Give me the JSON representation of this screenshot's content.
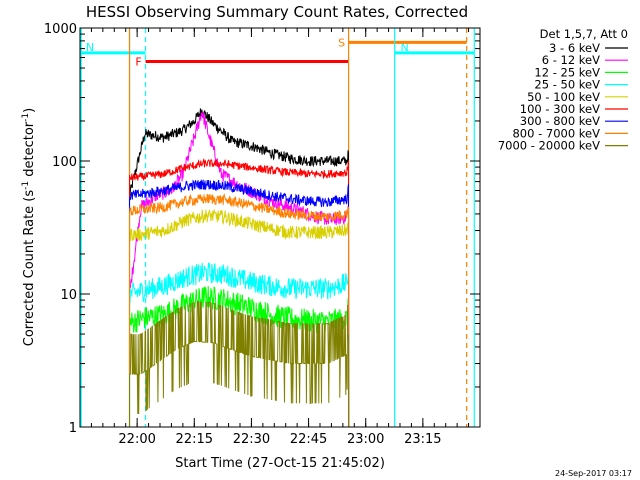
{
  "chart_data": {
    "type": "line",
    "title": "HESSI Observing Summary Count Rates, Corrected",
    "xlabel": "Start Time (27-Oct-15 21:45:02)",
    "ylabel_main": "Corrected Count Rate (s",
    "ylabel_sup1": "-1",
    "ylabel_mid": " detector",
    "ylabel_sup2": "-1",
    "ylabel_end": ")",
    "yscale": "log",
    "ylim": [
      1,
      1000
    ],
    "xlim_minutes": [
      0,
      105
    ],
    "x_start": "21:45:02",
    "xticks": [
      {
        "minute": 15,
        "label": "22:00"
      },
      {
        "minute": 30,
        "label": "22:15"
      },
      {
        "minute": 45,
        "label": "22:30"
      },
      {
        "minute": 60,
        "label": "22:45"
      },
      {
        "minute": 75,
        "label": "23:00"
      },
      {
        "minute": 90,
        "label": "23:15"
      }
    ],
    "yticks": [
      {
        "value": 1,
        "label": "1"
      },
      {
        "value": 10,
        "label": "10"
      },
      {
        "value": 100,
        "label": "100"
      },
      {
        "value": 1000,
        "label": "1000"
      }
    ],
    "legend_position": "right",
    "legend_header": "Det 1,5,7, Att 0",
    "data_start_minute": 13.0,
    "data_end_minute": 70.5,
    "series": [
      {
        "name": "3 - 6 keV",
        "color": "#000000",
        "noise": 0.04,
        "points": [
          [
            13,
            55
          ],
          [
            17,
            160
          ],
          [
            22,
            150
          ],
          [
            27,
            170
          ],
          [
            30,
            200
          ],
          [
            32,
            240
          ],
          [
            35,
            190
          ],
          [
            40,
            140
          ],
          [
            45,
            130
          ],
          [
            50,
            115
          ],
          [
            55,
            105
          ],
          [
            60,
            100
          ],
          [
            65,
            100
          ],
          [
            70,
            100
          ],
          [
            70.5,
            115
          ]
        ]
      },
      {
        "name": "6 - 12 keV",
        "color": "#ff00ff",
        "noise": 0.05,
        "points": [
          [
            13,
            10
          ],
          [
            16,
            45
          ],
          [
            20,
            55
          ],
          [
            24,
            60
          ],
          [
            27,
            80
          ],
          [
            30,
            150
          ],
          [
            32,
            235
          ],
          [
            34,
            150
          ],
          [
            37,
            80
          ],
          [
            42,
            65
          ],
          [
            50,
            50
          ],
          [
            58,
            42
          ],
          [
            62,
            38
          ],
          [
            66,
            36
          ],
          [
            70,
            38
          ],
          [
            70.5,
            45
          ]
        ]
      },
      {
        "name": "12 - 25 keV",
        "color": "#00ff00",
        "noise": 0.09,
        "points": [
          [
            13,
            6
          ],
          [
            16,
            6.5
          ],
          [
            22,
            7
          ],
          [
            28,
            8.5
          ],
          [
            33,
            9.5
          ],
          [
            38,
            9
          ],
          [
            44,
            8
          ],
          [
            50,
            7
          ],
          [
            55,
            6.5
          ],
          [
            60,
            6.3
          ],
          [
            65,
            6.2
          ],
          [
            70,
            6.5
          ],
          [
            70.5,
            8
          ]
        ]
      },
      {
        "name": "25 - 50 keV",
        "color": "#00ffff",
        "noise": 0.08,
        "points": [
          [
            13,
            10
          ],
          [
            16,
            10.5
          ],
          [
            22,
            11.5
          ],
          [
            28,
            13.5
          ],
          [
            33,
            14.5
          ],
          [
            38,
            14
          ],
          [
            44,
            12.5
          ],
          [
            50,
            11.5
          ],
          [
            55,
            11
          ],
          [
            60,
            11
          ],
          [
            65,
            11
          ],
          [
            70,
            12
          ],
          [
            70.5,
            15
          ]
        ]
      },
      {
        "name": "50 - 100 keV",
        "color": "#d8d000",
        "noise": 0.05,
        "points": [
          [
            13,
            28
          ],
          [
            16,
            28
          ],
          [
            22,
            30
          ],
          [
            28,
            36
          ],
          [
            33,
            39
          ],
          [
            38,
            38
          ],
          [
            44,
            34
          ],
          [
            50,
            31
          ],
          [
            55,
            29
          ],
          [
            60,
            29
          ],
          [
            65,
            29
          ],
          [
            70,
            30
          ],
          [
            70.5,
            34
          ]
        ]
      },
      {
        "name": "100 - 300 keV",
        "color": "#ff0000",
        "noise": 0.03,
        "points": [
          [
            13,
            75
          ],
          [
            16,
            76
          ],
          [
            22,
            80
          ],
          [
            28,
            90
          ],
          [
            33,
            96
          ],
          [
            38,
            95
          ],
          [
            44,
            90
          ],
          [
            50,
            85
          ],
          [
            55,
            82
          ],
          [
            60,
            80
          ],
          [
            65,
            80
          ],
          [
            70,
            82
          ],
          [
            70.5,
            95
          ]
        ]
      },
      {
        "name": "300 - 800 keV",
        "color": "#0000ff",
        "noise": 0.04,
        "points": [
          [
            13,
            55
          ],
          [
            16,
            56
          ],
          [
            22,
            60
          ],
          [
            28,
            65
          ],
          [
            33,
            67
          ],
          [
            38,
            65
          ],
          [
            44,
            60
          ],
          [
            50,
            55
          ],
          [
            55,
            52
          ],
          [
            60,
            50
          ],
          [
            65,
            49
          ],
          [
            70,
            52
          ],
          [
            70.5,
            62
          ]
        ]
      },
      {
        "name": "800 - 7000 keV",
        "color": "#ff8000",
        "noise": 0.04,
        "points": [
          [
            13,
            42
          ],
          [
            16,
            43
          ],
          [
            22,
            45
          ],
          [
            28,
            50
          ],
          [
            33,
            52
          ],
          [
            38,
            51
          ],
          [
            44,
            47
          ],
          [
            50,
            43
          ],
          [
            55,
            40
          ],
          [
            60,
            39
          ],
          [
            65,
            38
          ],
          [
            70,
            40
          ],
          [
            70.5,
            45
          ]
        ]
      },
      {
        "name": "7000 - 20000 keV",
        "color": "#808000",
        "noise": 0.35,
        "points": [
          [
            13,
            2.5
          ],
          [
            16,
            2.5
          ],
          [
            20,
            3.0
          ],
          [
            25,
            3.8
          ],
          [
            30,
            4.4
          ],
          [
            35,
            4.3
          ],
          [
            40,
            3.8
          ],
          [
            45,
            3.4
          ],
          [
            50,
            3.2
          ],
          [
            55,
            3.0
          ],
          [
            60,
            3.0
          ],
          [
            65,
            3.0
          ],
          [
            70,
            3.5
          ],
          [
            70.5,
            5
          ]
        ]
      }
    ],
    "flags": [
      {
        "label": "N",
        "color": "#00ffff",
        "level": 650,
        "start": 0,
        "end": 17.2,
        "dashed": false
      },
      {
        "label": "N",
        "color": "#00ffff",
        "level": 650,
        "start": 82.6,
        "end": 103.5,
        "dashed": false
      },
      {
        "label": "F",
        "color": "#ff0000",
        "level": 560,
        "start": 17.2,
        "end": 70.5,
        "dashed": false
      },
      {
        "label": "S",
        "color": "#ff8000",
        "level": 780,
        "start": 70.5,
        "end": 101.5,
        "dashed": false
      }
    ],
    "vlines": [
      {
        "minute": 0.3,
        "color": "#00ffff",
        "dashed": false
      },
      {
        "minute": 13.0,
        "color": "#00ffff",
        "dashed": false
      },
      {
        "minute": 13.0,
        "color": "#ff8000",
        "dashed": false
      },
      {
        "minute": 17.2,
        "color": "#00ffff",
        "dashed": true
      },
      {
        "minute": 70.5,
        "color": "#ff8000",
        "dashed": false
      },
      {
        "minute": 82.6,
        "color": "#00ffff",
        "dashed": false
      },
      {
        "minute": 101.5,
        "color": "#ff8000",
        "dashed": true
      },
      {
        "minute": 103.5,
        "color": "#00ffff",
        "dashed": false
      }
    ]
  },
  "timestamp": "24-Sep-2017 03:17"
}
